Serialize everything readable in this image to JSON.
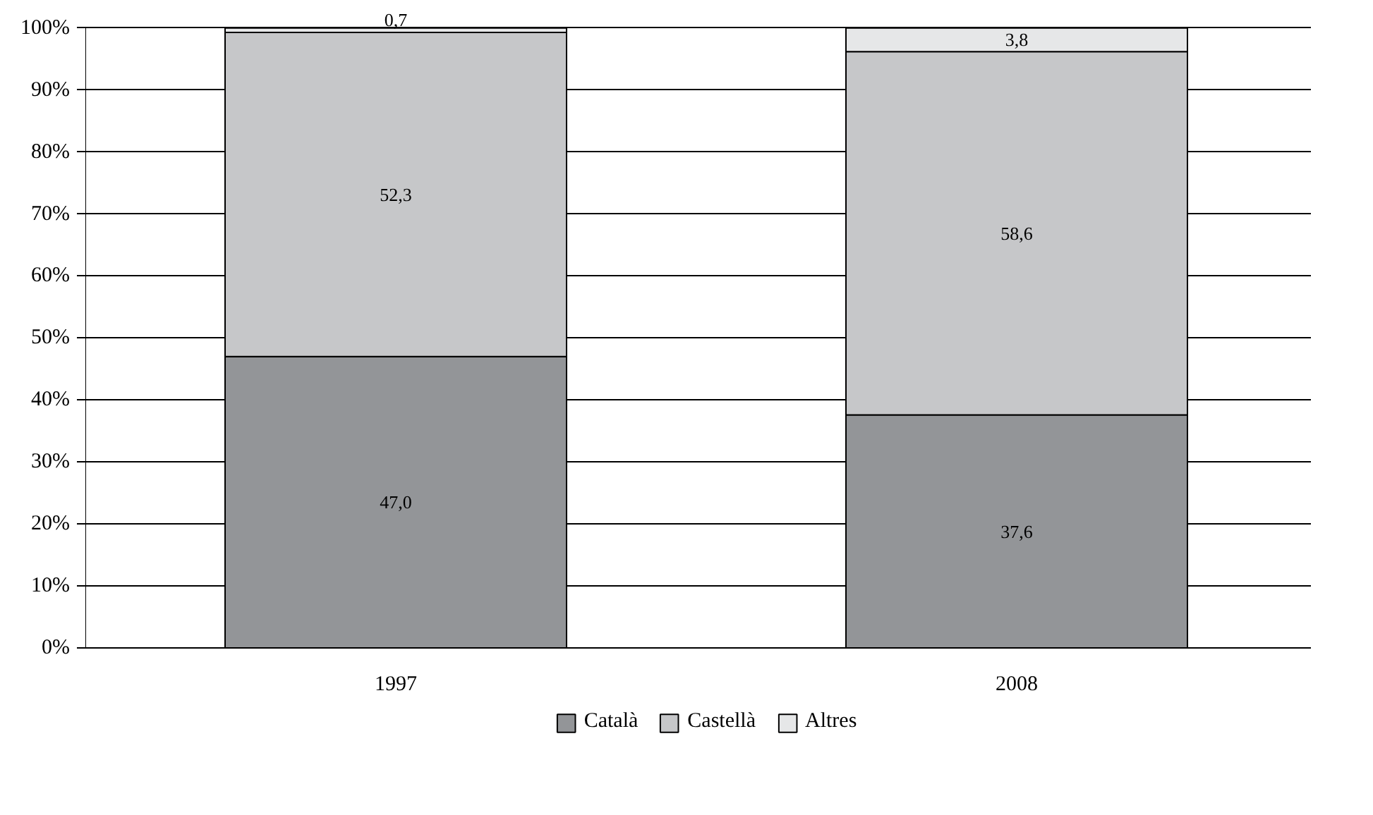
{
  "chart_data": {
    "type": "bar",
    "stacked": true,
    "categories": [
      "1997",
      "2008"
    ],
    "series": [
      {
        "name": "Català",
        "color": "#939598",
        "values": [
          47.0,
          37.6
        ],
        "value_labels": [
          "47,0",
          "37,6"
        ]
      },
      {
        "name": "Castellà",
        "color": "#c6c7c9",
        "values": [
          52.3,
          58.6
        ],
        "value_labels": [
          "52,3",
          "58,6"
        ]
      },
      {
        "name": "Altres",
        "color": "#e6e7e8",
        "values": [
          0.7,
          3.8
        ],
        "value_labels": [
          "0,7",
          "3,8"
        ]
      }
    ],
    "ylim": [
      0,
      100
    ],
    "yticks": [
      {
        "value": 0,
        "label": "0%"
      },
      {
        "value": 10,
        "label": "10%"
      },
      {
        "value": 20,
        "label": "20%"
      },
      {
        "value": 30,
        "label": "30%"
      },
      {
        "value": 40,
        "label": "40%"
      },
      {
        "value": 50,
        "label": "50%"
      },
      {
        "value": 60,
        "label": "60%"
      },
      {
        "value": 70,
        "label": "70%"
      },
      {
        "value": 80,
        "label": "80%"
      },
      {
        "value": 90,
        "label": "90%"
      },
      {
        "value": 100,
        "label": "100%"
      }
    ],
    "grid": "y",
    "legend": "bottom"
  }
}
